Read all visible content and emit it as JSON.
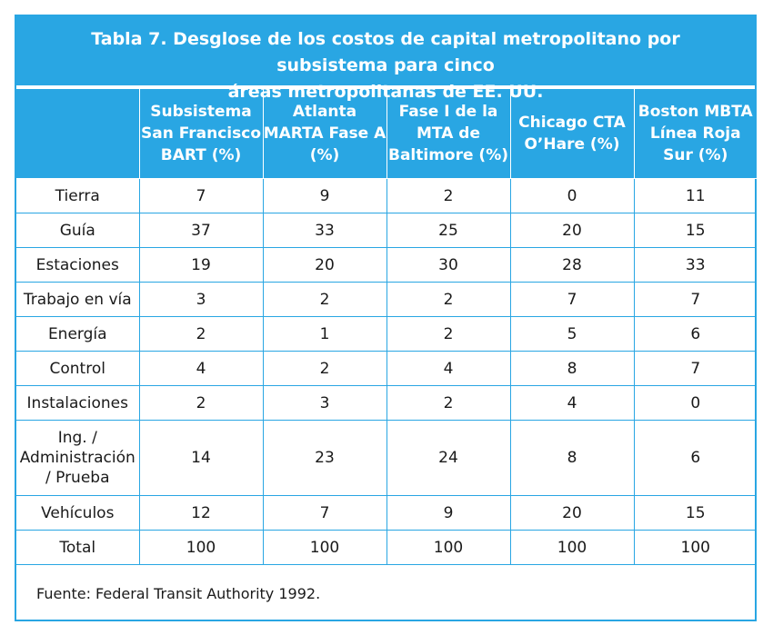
{
  "table": {
    "title_line1": "Tabla 7. Desglose de los costos de capital metropolitano por subsistema para cinco",
    "title_line2": "áreas metropolitanas de EE. UU.",
    "headers": [
      "",
      "Subsistema San Francisco BART (%)",
      "Atlanta MARTA Fase A (%)",
      "Fase I de la MTA de Baltimore (%)",
      "Chicago CTA O’Hare (%)",
      "Boston MBTA Línea Roja Sur (%)"
    ],
    "rows": [
      [
        "Tierra",
        "7",
        "9",
        "2",
        "0",
        "11"
      ],
      [
        "Guía",
        "37",
        "33",
        "25",
        "20",
        "15"
      ],
      [
        "Estaciones",
        "19",
        "20",
        "30",
        "28",
        "33"
      ],
      [
        "Trabajo en vía",
        "3",
        "2",
        "2",
        "7",
        "7"
      ],
      [
        "Energía",
        "2",
        "1",
        "2",
        "5",
        "6"
      ],
      [
        "Control",
        "4",
        "2",
        "4",
        "8",
        "7"
      ],
      [
        "Instalaciones",
        "2",
        "3",
        "2",
        "4",
        "0"
      ],
      [
        "Ing. / Administración / Prueba",
        "14",
        "23",
        "24",
        "8",
        "6"
      ],
      [
        "Vehículos",
        "12",
        "7",
        "9",
        "20",
        "15"
      ],
      [
        "Total",
        "100",
        "100",
        "100",
        "100",
        "100"
      ]
    ],
    "source": "Fuente: Federal Transit Authority 1992."
  },
  "colors": {
    "accent": "#29a6e3",
    "header_text": "#ffffff"
  }
}
